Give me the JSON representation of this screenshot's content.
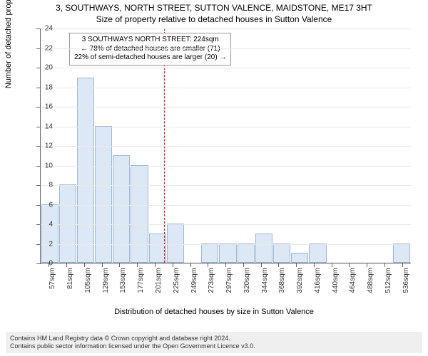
{
  "title_line1": "3, SOUTHWAYS, NORTH STREET, SUTTON VALENCE, MAIDSTONE, ME17 3HT",
  "title_line2": "Size of property relative to detached houses in Sutton Valence",
  "y_axis": {
    "label": "Number of detached properties",
    "min": 0,
    "max": 24,
    "step": 2,
    "label_fontsize": 11,
    "tick_fontsize": 10
  },
  "x_axis": {
    "label": "Distribution of detached houses by size in Sutton Valence",
    "labels": [
      "57sqm",
      "81sqm",
      "105sqm",
      "129sqm",
      "153sqm",
      "177sqm",
      "201sqm",
      "225sqm",
      "249sqm",
      "273sqm",
      "297sqm",
      "320sqm",
      "344sqm",
      "368sqm",
      "392sqm",
      "416sqm",
      "440sqm",
      "464sqm",
      "488sqm",
      "512sqm",
      "536sqm"
    ],
    "label_fontsize": 11,
    "tick_fontsize": 10
  },
  "chart": {
    "type": "histogram",
    "values": [
      6,
      8,
      19,
      14,
      11,
      10,
      3,
      4,
      0,
      2,
      2,
      2,
      3,
      2,
      1,
      2,
      0,
      0,
      0,
      0,
      2
    ],
    "bar_fill": "#dce8f6",
    "bar_stroke": "#9fb8d6",
    "background": "#ffffff",
    "grid_color": "#e8e8e8",
    "axis_color": "#666666"
  },
  "marker": "#ff0000",
  "marker_bin_index": 7,
  "annotation": {
    "lines": [
      "3 SOUTHWAYS NORTH STREET: 224sqm",
      "← 78% of detached houses are smaller (71)",
      "22% of semi-detached houses are larger (20) →"
    ],
    "fontsize": 10,
    "border_color": "#999999",
    "background": "#ffffff"
  },
  "footer": {
    "line1": "Contains HM Land Registry data © Crown copyright and database right 2024.",
    "line2": "Contains public sector information licensed under the Open Government Licence v3.0.",
    "background": "#efefef",
    "fontsize": 9
  }
}
